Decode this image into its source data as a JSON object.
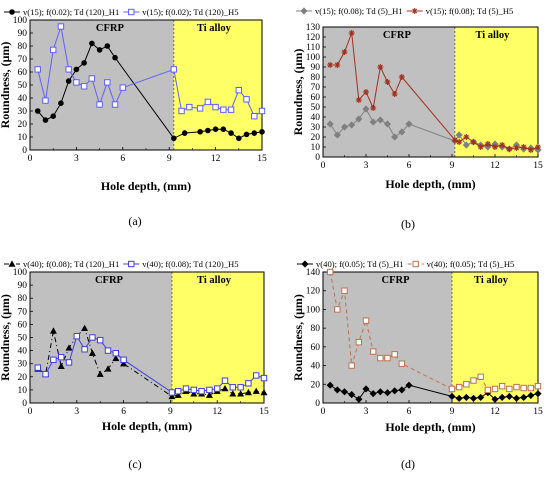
{
  "chart_data": [
    {
      "type": "line",
      "caption": "(a)",
      "xlabel": "Hole depth, (mm)",
      "ylabel": "Roundness, (μm)",
      "xlim": [
        0,
        15
      ],
      "ylim": [
        0,
        100
      ],
      "xticks": [
        0,
        3,
        6,
        9,
        12,
        15
      ],
      "yticks": [
        0,
        10,
        20,
        30,
        40,
        50,
        60,
        70,
        80,
        90,
        100
      ],
      "regions": [
        {
          "label": "CFRP",
          "x0": 0,
          "x1": 9.3,
          "color": "#c0c0c0"
        },
        {
          "label": "Ti alloy",
          "x0": 9.3,
          "x1": 15,
          "color": "#ffff66"
        }
      ],
      "series": [
        {
          "name": "v(15); f(0.02); Td (120)_H1",
          "color": "#000000",
          "marker": "circle",
          "dash": "",
          "x": [
            0.5,
            1.0,
            1.5,
            2.0,
            2.5,
            3.0,
            3.5,
            4.0,
            4.5,
            5.0,
            5.5,
            9.3,
            10.0,
            11.0,
            11.5,
            12.0,
            12.5,
            13.0,
            13.5,
            14.0,
            14.5,
            15.0
          ],
          "y": [
            30,
            23,
            26,
            36,
            53,
            62,
            67,
            82,
            77,
            80,
            71,
            9,
            13,
            14,
            15,
            16,
            16,
            13,
            9,
            12,
            13,
            14
          ]
        },
        {
          "name": "v(15); f(0.02); Td (120)_H5",
          "color": "#6060ff",
          "marker": "square",
          "dash": "",
          "x": [
            0.5,
            1.0,
            1.5,
            2.0,
            2.5,
            3.0,
            3.5,
            4.0,
            4.5,
            5.0,
            5.5,
            6.0,
            9.3,
            9.8,
            10.3,
            11.0,
            11.5,
            12.0,
            12.5,
            13.0,
            13.5,
            14.0,
            14.5,
            15.0
          ],
          "y": [
            62,
            38,
            77,
            95,
            62,
            52,
            49,
            55,
            35,
            52,
            35,
            48,
            62,
            30,
            33,
            32,
            37,
            33,
            31,
            31,
            46,
            39,
            26,
            30
          ]
        }
      ]
    },
    {
      "type": "line",
      "caption": "(b)",
      "xlabel": "Hole depth, (mm)",
      "ylabel": "Roundness, (μm)",
      "xlim": [
        0,
        15
      ],
      "ylim": [
        0,
        130
      ],
      "xticks": [
        0,
        3,
        6,
        9,
        12,
        15
      ],
      "yticks": [
        0,
        10,
        20,
        30,
        40,
        50,
        60,
        70,
        80,
        90,
        100,
        110,
        120,
        130
      ],
      "regions": [
        {
          "label": "CFRP",
          "x0": 0,
          "x1": 9.2,
          "color": "#c0c0c0"
        },
        {
          "label": "Ti alloy",
          "x0": 9.2,
          "x1": 15,
          "color": "#ffff66"
        }
      ],
      "series": [
        {
          "name": "v(15); f(0.08); Td (5)_H1",
          "color": "#808080",
          "marker": "diamond",
          "dash": "",
          "x": [
            0.5,
            1.0,
            1.5,
            2.0,
            2.5,
            3.0,
            3.5,
            4.0,
            4.5,
            5.0,
            5.5,
            6.0,
            9.2,
            9.5,
            10.0,
            10.5,
            11.0,
            11.5,
            12.0,
            12.5,
            13.0,
            13.5,
            14.0,
            14.5,
            15.0
          ],
          "y": [
            33,
            22,
            30,
            32,
            38,
            48,
            35,
            37,
            33,
            20,
            25,
            33,
            16,
            22,
            12,
            15,
            12,
            10,
            13,
            10,
            8,
            12,
            8,
            9,
            7
          ]
        },
        {
          "name": "v(15); f(0.08); Td (5)_H5",
          "color": "#a03020",
          "marker": "star",
          "dash": "",
          "x": [
            0.5,
            1.0,
            1.5,
            2.0,
            2.5,
            3.0,
            3.5,
            4.0,
            4.5,
            5.0,
            5.5,
            9.2,
            9.5,
            10.0,
            10.5,
            11.0,
            11.5,
            12.0,
            12.5,
            13.0,
            13.5,
            14.0,
            14.5,
            15.0
          ],
          "y": [
            92,
            92,
            105,
            124,
            57,
            65,
            49,
            90,
            75,
            63,
            80,
            17,
            15,
            20,
            15,
            10,
            13,
            10,
            12,
            8,
            9,
            10,
            7,
            10
          ]
        }
      ]
    },
    {
      "type": "line",
      "caption": "(c)",
      "xlabel": "Hole depth, (mm)",
      "ylabel": "Roundness, (μm)",
      "xlim": [
        0,
        15
      ],
      "ylim": [
        0,
        100
      ],
      "xticks": [
        0,
        3,
        6,
        9,
        12,
        15
      ],
      "yticks": [
        0,
        10,
        20,
        30,
        40,
        50,
        60,
        70,
        80,
        90,
        100
      ],
      "regions": [
        {
          "label": "CFRP",
          "x0": 0,
          "x1": 9.1,
          "color": "#c0c0c0"
        },
        {
          "label": "Ti alloy",
          "x0": 9.1,
          "x1": 15,
          "color": "#ffff66"
        }
      ],
      "series": [
        {
          "name": "v(40); f(0.08); Td (120)_H1",
          "color": "#000000",
          "marker": "triangle",
          "dash": "5,3,1,3",
          "x": [
            0.5,
            1.0,
            1.5,
            2.0,
            2.5,
            3.0,
            3.5,
            4.0,
            4.5,
            5.0,
            5.5,
            6.0,
            9.1,
            9.5,
            10.0,
            10.5,
            11.0,
            11.5,
            12.0,
            12.5,
            13.0,
            13.5,
            14.0,
            14.5,
            15.0
          ],
          "y": [
            26,
            22,
            55,
            28,
            42,
            51,
            57,
            38,
            22,
            26,
            34,
            30,
            5,
            6,
            9,
            7,
            7,
            6,
            9,
            11,
            7,
            7,
            8,
            9,
            8
          ]
        },
        {
          "name": "v(40); f(0.08); Td (120)_H5",
          "color": "#4040e0",
          "marker": "square",
          "dash": "",
          "x": [
            0.5,
            1.0,
            1.5,
            2.0,
            2.5,
            3.0,
            3.5,
            4.0,
            4.5,
            5.0,
            5.5,
            6.0,
            9.1,
            9.5,
            10.0,
            10.5,
            11.0,
            11.5,
            12.0,
            12.5,
            13.0,
            13.5,
            14.0,
            14.5,
            15.0
          ],
          "y": [
            27,
            22,
            33,
            35,
            31,
            51,
            41,
            50,
            48,
            40,
            38,
            33,
            8,
            9,
            11,
            10,
            9,
            10,
            11,
            17,
            12,
            12,
            15,
            21,
            19
          ]
        }
      ]
    },
    {
      "type": "line",
      "caption": "(d)",
      "xlabel": "Hole depth, (mm)",
      "ylabel": "Roundness, (μm)",
      "xlim": [
        0,
        15
      ],
      "ylim": [
        0,
        140
      ],
      "xticks": [
        0,
        3,
        6,
        9,
        12,
        15
      ],
      "yticks": [
        0,
        20,
        40,
        60,
        80,
        100,
        120,
        140
      ],
      "regions": [
        {
          "label": "CFRP",
          "x0": 0,
          "x1": 9.0,
          "color": "#c0c0c0"
        },
        {
          "label": "Ti alloy",
          "x0": 9.0,
          "x1": 15,
          "color": "#ffff66"
        }
      ],
      "series": [
        {
          "name": "v(40); f(0.05); Td (5)_H1",
          "color": "#000000",
          "marker": "diamond",
          "dash": "",
          "x": [
            0.5,
            1.0,
            1.5,
            2.0,
            2.5,
            3.0,
            3.5,
            4.0,
            4.5,
            5.0,
            5.5,
            6.0,
            9.0,
            9.5,
            10.0,
            10.5,
            11.0,
            11.5,
            12.0,
            12.5,
            13.0,
            13.5,
            14.0,
            14.5,
            15.0
          ],
          "y": [
            19,
            14,
            12,
            9,
            4,
            15,
            10,
            12,
            11,
            13,
            14,
            19,
            7,
            5,
            6,
            5,
            6,
            11,
            4,
            6,
            7,
            5,
            6,
            8,
            10
          ]
        },
        {
          "name": "v(40); f(0.05); Td (5)_H5",
          "color": "#c07050",
          "marker": "square",
          "dash": "4,3",
          "x": [
            0.5,
            1.0,
            1.5,
            2.0,
            2.5,
            3.0,
            3.5,
            4.0,
            4.5,
            5.0,
            5.5,
            9.0,
            9.5,
            10.0,
            10.5,
            11.0,
            11.5,
            12.0,
            12.5,
            13.0,
            13.5,
            14.0,
            14.5,
            15.0
          ],
          "y": [
            140,
            100,
            120,
            40,
            65,
            88,
            55,
            48,
            48,
            52,
            42,
            15,
            17,
            20,
            24,
            28,
            14,
            15,
            18,
            15,
            17,
            16,
            16,
            18
          ]
        }
      ]
    }
  ]
}
